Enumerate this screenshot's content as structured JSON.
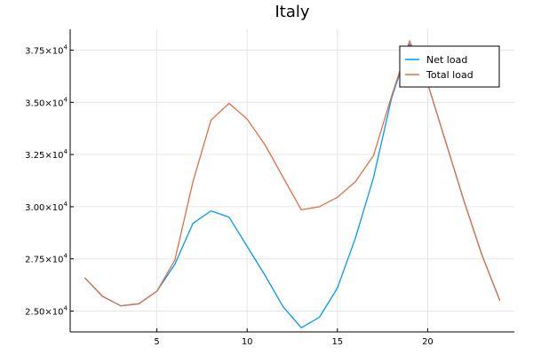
{
  "chart_data": {
    "type": "line",
    "title": "Italy",
    "xlabel": "",
    "ylabel": "",
    "xlim": [
      0.2,
      24.8
    ],
    "ylim": [
      24000,
      38500
    ],
    "x_ticks": [
      5,
      10,
      15,
      20
    ],
    "y_ticks": [
      {
        "value": 25000,
        "mantissa": "2.50×10",
        "exp": "4"
      },
      {
        "value": 27500,
        "mantissa": "2.75×10",
        "exp": "4"
      },
      {
        "value": 30000,
        "mantissa": "3.00×10",
        "exp": "4"
      },
      {
        "value": 32500,
        "mantissa": "3.25×10",
        "exp": "4"
      },
      {
        "value": 35000,
        "mantissa": "3.50×10",
        "exp": "4"
      },
      {
        "value": 37500,
        "mantissa": "3.75×10",
        "exp": "4"
      }
    ],
    "grid": true,
    "legend_position": "top-right",
    "x": [
      1,
      2,
      3,
      4,
      5,
      6,
      7,
      8,
      9,
      10,
      11,
      12,
      13,
      14,
      15,
      16,
      17,
      18,
      19,
      20,
      21,
      22,
      23,
      24
    ],
    "series": [
      {
        "name": "Net load",
        "color": "#009AFA",
        "values": [
          26600,
          25700,
          25250,
          25350,
          25950,
          27250,
          29200,
          29800,
          29500,
          28100,
          26700,
          25200,
          24200,
          24700,
          26100,
          28500,
          31400,
          35200,
          37800,
          35900,
          33100,
          30300,
          27700,
          25500
        ]
      },
      {
        "name": "Total load",
        "color": "#E36F47",
        "values": [
          26600,
          25700,
          25250,
          25350,
          25950,
          27450,
          31200,
          34150,
          34950,
          34200,
          32950,
          31400,
          29850,
          30000,
          30450,
          31200,
          32450,
          35300,
          37950,
          35900,
          33100,
          30300,
          27700,
          25500
        ]
      }
    ]
  }
}
